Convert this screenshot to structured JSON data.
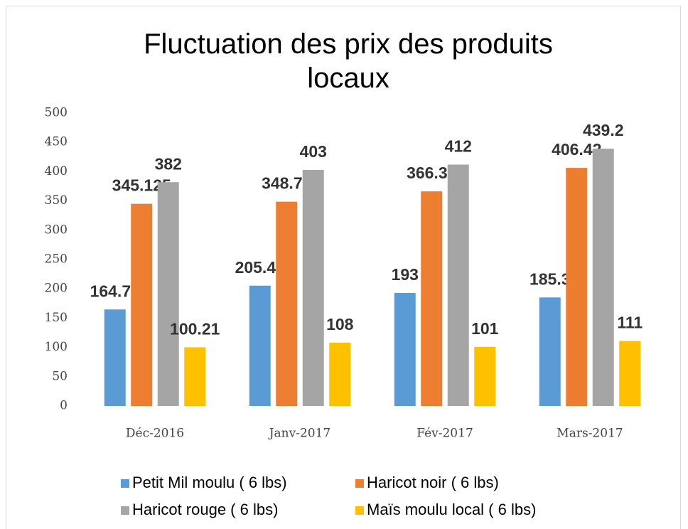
{
  "chart_data": {
    "type": "bar",
    "title": "Fluctuation des prix des produits locaux",
    "categories": [
      "Déc-2016",
      "Janv-2017",
      "Fév-2017",
      "Mars-2017"
    ],
    "series": [
      {
        "name": "Petit Mil moulu ( 6 lbs)",
        "color": "#5b9bd5",
        "values": [
          164.75,
          205.42,
          193,
          185.3
        ]
      },
      {
        "name": "Haricot noir ( 6 lbs)",
        "color": "#ed7d31",
        "values": [
          345.125,
          348.71,
          366.33,
          406.42
        ]
      },
      {
        "name": "Haricot rouge ( 6 lbs)",
        "color": "#a5a5a5",
        "values": [
          382,
          403,
          412,
          439.2
        ]
      },
      {
        "name": "Maïs moulu local ( 6 lbs)",
        "color": "#ffc000",
        "values": [
          100.21,
          108,
          101,
          111
        ]
      }
    ],
    "ylim": [
      0,
      500
    ],
    "yticks": [
      0,
      50,
      100,
      150,
      200,
      250,
      300,
      350,
      400,
      450,
      500
    ],
    "grid": false,
    "legend": "bottom"
  }
}
